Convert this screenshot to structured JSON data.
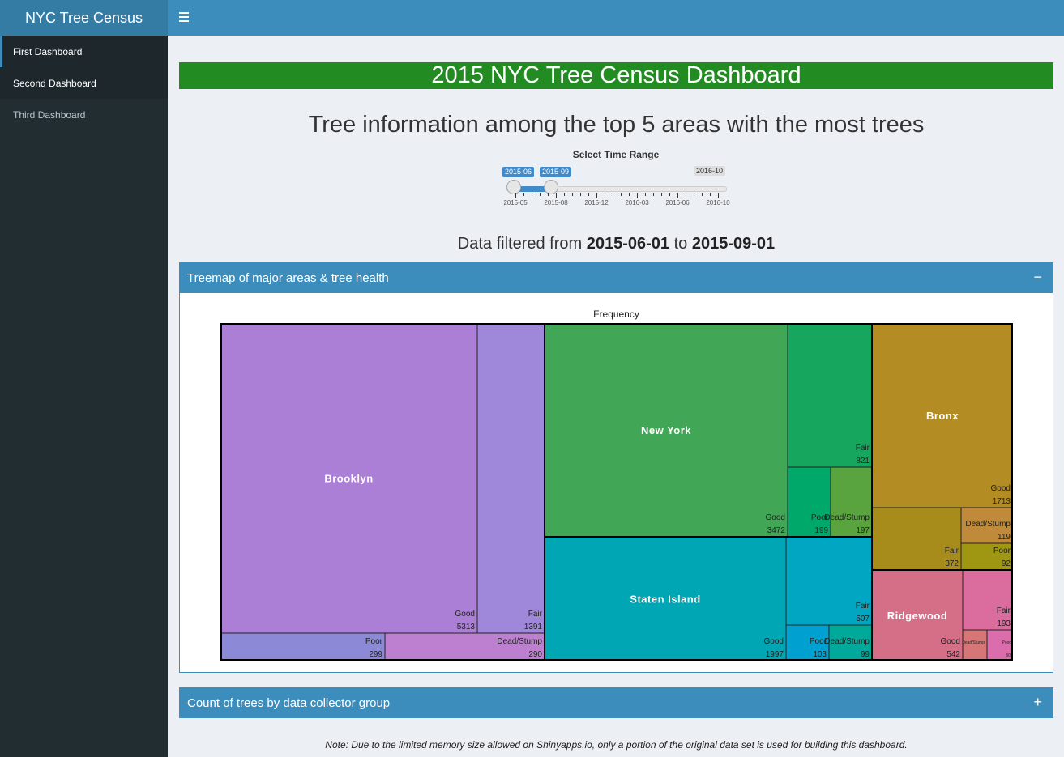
{
  "header": {
    "logo": "NYC Tree Census"
  },
  "sidebar": {
    "items": [
      {
        "label": "First Dashboard"
      },
      {
        "label": "Second Dashboard"
      },
      {
        "label": "Third Dashboard"
      }
    ]
  },
  "main": {
    "title": "2015 NYC Tree Census Dashboard",
    "subtitle": "Tree information among the top 5 areas with the most trees",
    "slider": {
      "label": "Select Time Range",
      "from_badge": "2015-06",
      "to_badge": "2015-09",
      "max_badge": "2016-10",
      "ticks": [
        "2015-05",
        "2015-08",
        "2015-12",
        "2016-03",
        "2016-06",
        "2016-10"
      ],
      "range_fraction_start": 0.03,
      "range_fraction_end": 0.2
    },
    "filter": {
      "prefix": "Data filtered from",
      "from": "2015-06-01",
      "joiner": "to",
      "to": "2015-09-01"
    },
    "box1": {
      "title": "Treemap of major areas & tree health",
      "tool": "−"
    },
    "box2": {
      "title": "Count of trees by data collector group",
      "tool": "+"
    },
    "note": "Note: Due to the limited memory size allowed on Shinyapps.io, only a portion of the original data set is used for building this dashboard."
  },
  "chart_data": {
    "type": "treemap",
    "title": "Frequency",
    "groups": [
      {
        "name": "Brooklyn",
        "color": "#ab7fd6",
        "children": [
          {
            "name": "Good",
            "value": 5313,
            "color": "#ab7fd6"
          },
          {
            "name": "Fair",
            "value": 1391,
            "color": "#9f87d9"
          },
          {
            "name": "Poor",
            "value": 299,
            "color": "#8c8ad6"
          },
          {
            "name": "Dead/Stump",
            "value": 290,
            "color": "#bd80d0"
          }
        ]
      },
      {
        "name": "New York",
        "color": "#42a657",
        "children": [
          {
            "name": "Good",
            "value": 3472,
            "color": "#42a657"
          },
          {
            "name": "Fair",
            "value": 821,
            "color": "#17a65e"
          },
          {
            "name": "Poor",
            "value": 199,
            "color": "#00a86a"
          },
          {
            "name": "Dead/Stump",
            "value": 197,
            "color": "#5aa440"
          }
        ]
      },
      {
        "name": "Staten Island",
        "color": "#00a6b4",
        "children": [
          {
            "name": "Good",
            "value": 1997,
            "color": "#00a6b4"
          },
          {
            "name": "Fair",
            "value": 507,
            "color": "#00a6c2"
          },
          {
            "name": "Poor",
            "value": 103,
            "color": "#00a0d0"
          },
          {
            "name": "Dead/Stump",
            "value": 99,
            "color": "#00a99a"
          }
        ]
      },
      {
        "name": "Bronx",
        "color": "#b38c24",
        "children": [
          {
            "name": "Good",
            "value": 1713,
            "color": "#b38c24"
          },
          {
            "name": "Fair",
            "value": 372,
            "color": "#a88c1b"
          },
          {
            "name": "Dead/Stump",
            "value": 119,
            "color": "#bf8a3a"
          },
          {
            "name": "Poor",
            "value": 92,
            "color": "#9f9612"
          }
        ]
      },
      {
        "name": "Ridgewood",
        "color": "#d46f87",
        "children": [
          {
            "name": "Good",
            "value": 542,
            "color": "#d46f87"
          },
          {
            "name": "Fair",
            "value": 193,
            "color": "#da6d9e"
          },
          {
            "name": "Dead/Stump",
            "value": "",
            "color": "#d77676"
          },
          {
            "name": "Poor",
            "value": 50,
            "color": "#dc6dac"
          }
        ]
      }
    ]
  }
}
